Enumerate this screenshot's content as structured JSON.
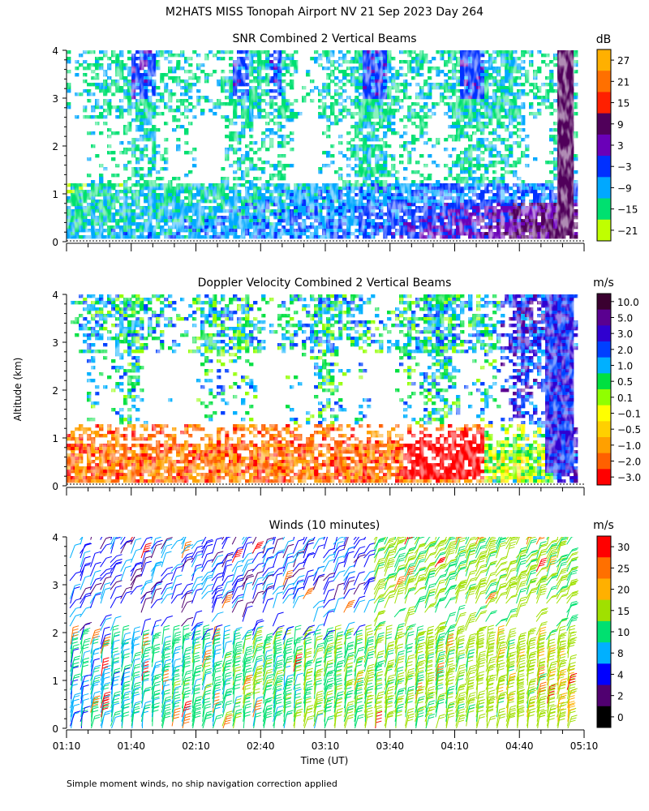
{
  "figure": {
    "title": "M2HATS MISS Tonopah Airport NV  21 Sep 2023 Day 264",
    "xlabel": "Time (UT)",
    "ylabel": "Altitude (km)",
    "footnote": "Simple moment winds, no ship navigation correction applied"
  },
  "chart_data": [
    {
      "type": "heatmap",
      "title": "SNR Combined 2 Vertical Beams",
      "xlim": [
        "01:10",
        "05:10"
      ],
      "x_ticks": [
        "01:10",
        "01:40",
        "02:10",
        "02:40",
        "03:10",
        "03:40",
        "04:10",
        "04:40",
        "05:10"
      ],
      "ylim": [
        0,
        4
      ],
      "y_ticks": [
        "0",
        "1",
        "2",
        "3",
        "4"
      ],
      "colorbar": {
        "unit": "dB",
        "labels": [
          "27",
          "21",
          "15",
          "9",
          "3",
          "−3",
          "−9",
          "−15",
          "−21"
        ],
        "colors": [
          "#ffb000",
          "#ff7000",
          "#ff2000",
          "#50005a",
          "#6a00b8",
          "#0030ff",
          "#00a8ff",
          "#00e070",
          "#c0ff00"
        ]
      },
      "regions": [
        {
          "description_level": "low",
          "x": [
            "01:10",
            "05:00"
          ],
          "y": [
            0.1,
            1.2
          ],
          "snr_db": -12
        },
        {
          "description_level": "high",
          "x": [
            "03:40",
            "04:55"
          ],
          "y": [
            0.1,
            0.8
          ],
          "snr_db": 9
        },
        {
          "description_level": "high",
          "x": [
            "04:50",
            "05:02"
          ],
          "y": [
            0.2,
            4.0
          ],
          "snr_db": 9
        }
      ]
    },
    {
      "type": "heatmap",
      "title": "Doppler Velocity Combined 2 Vertical Beams",
      "xlim": [
        "01:10",
        "05:10"
      ],
      "x_ticks": [
        "01:10",
        "01:40",
        "02:10",
        "02:40",
        "03:10",
        "03:40",
        "04:10",
        "04:40",
        "05:10"
      ],
      "ylim": [
        0,
        4
      ],
      "y_ticks": [
        "0",
        "1",
        "2",
        "3",
        "4"
      ],
      "colorbar": {
        "unit": "m/s",
        "labels": [
          "10.0",
          "5.0",
          "3.0",
          "2.0",
          "1.0",
          "0.5",
          "0.1",
          "−0.1",
          "−0.5",
          "−1.0",
          "−2.0",
          "−3.0"
        ],
        "colors": [
          "#3a0030",
          "#5a0090",
          "#3000d0",
          "#0040ff",
          "#00b0ff",
          "#00e040",
          "#90ff00",
          "#ffff00",
          "#ffd000",
          "#ffa000",
          "#ff6000",
          "#ff0000"
        ]
      }
    },
    {
      "type": "barbs",
      "title": "Winds (10 minutes)",
      "xlim": [
        "01:10",
        "05:10"
      ],
      "x_ticks": [
        "01:10",
        "01:40",
        "02:10",
        "02:40",
        "03:10",
        "03:40",
        "04:10",
        "04:40",
        "05:10"
      ],
      "ylim": [
        0,
        4
      ],
      "y_ticks": [
        "0",
        "1",
        "2",
        "3",
        "4"
      ],
      "colorbar": {
        "unit": "m/s",
        "labels": [
          "30",
          "25",
          "20",
          "15",
          "10",
          "8",
          "4",
          "2",
          "0"
        ],
        "colors": [
          "#ff0000",
          "#ff7000",
          "#ffb000",
          "#a0e000",
          "#00e070",
          "#00b0ff",
          "#0000ff",
          "#500070",
          "#000000"
        ]
      }
    }
  ]
}
